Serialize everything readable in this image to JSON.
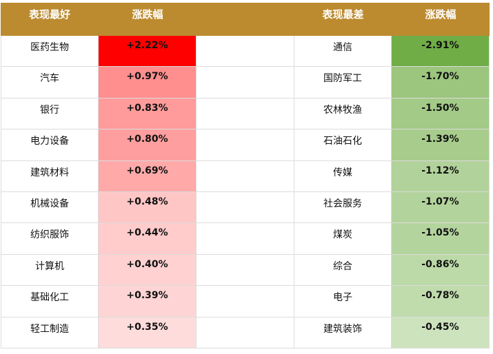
{
  "table": {
    "header": [
      "表现最好",
      "涨跌幅",
      "表现最差",
      "涨跌幅"
    ],
    "header_color": "#BC8B30",
    "best": [
      {
        "name": "医药生物",
        "change": "+2.22%",
        "color": "#FF0000"
      },
      {
        "name": "汽车",
        "change": "+0.97%",
        "color": "#FF8E8E"
      },
      {
        "name": "银行",
        "change": "+0.83%",
        "color": "#FF9B9B"
      },
      {
        "name": "电力设备",
        "change": "+0.80%",
        "color": "#FF9E9E"
      },
      {
        "name": "建筑材料",
        "change": "+0.69%",
        "color": "#FFA9A9"
      },
      {
        "name": "机械设备",
        "change": "+0.48%",
        "color": "#FFC6C6"
      },
      {
        "name": "纺织服饰",
        "change": "+0.44%",
        "color": "#FFCBCB"
      },
      {
        "name": "计算机",
        "change": "+0.40%",
        "color": "#FFD1D1"
      },
      {
        "name": "基础化工",
        "change": "+0.39%",
        "color": "#FFD4D4"
      },
      {
        "name": "轻工制造",
        "change": "+0.35%",
        "color": "#FFDCDC"
      }
    ],
    "worst": [
      {
        "name": "通信",
        "change": "-2.91%",
        "color": "#70AD47"
      },
      {
        "name": "国防军工",
        "change": "-1.70%",
        "color": "#9CC57E"
      },
      {
        "name": "农林牧渔",
        "change": "-1.50%",
        "color": "#A3CA87"
      },
      {
        "name": "石油石化",
        "change": "-1.39%",
        "color": "#A8CC8C"
      },
      {
        "name": "传媒",
        "change": "-1.12%",
        "color": "#B1D29A"
      },
      {
        "name": "社会服务",
        "change": "-1.07%",
        "color": "#B3D39C"
      },
      {
        "name": "煤炭",
        "change": "-1.05%",
        "color": "#B4D49E"
      },
      {
        "name": "综合",
        "change": "-0.86%",
        "color": "#BCD9A8"
      },
      {
        "name": "电子",
        "change": "-0.78%",
        "color": "#C0DBAC"
      },
      {
        "name": "建筑装饰",
        "change": "-0.45%",
        "color": "#CDE3BE"
      }
    ]
  }
}
